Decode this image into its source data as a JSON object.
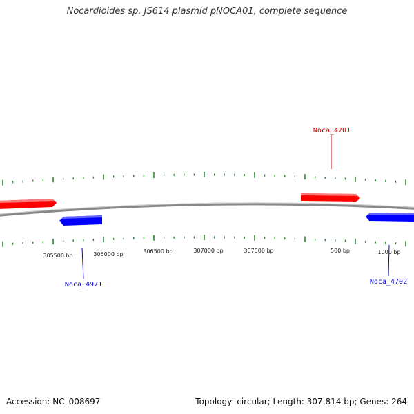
{
  "title": "Nocardioides sp. JS614 plasmid pNOCA01, complete sequence",
  "footer": {
    "accession": "Accession: NC_008697",
    "summary": "Topology: circular; Length: 307,814 bp; Genes: 264"
  },
  "colors": {
    "forward_gene": "#ff0000",
    "reverse_gene": "#0000ff",
    "tick": "#2e8b2e",
    "backbone": "#888888",
    "forward_label": "#cc0000",
    "reverse_label": "#0000cc"
  },
  "bp_labels": [
    "305500 bp",
    "306000 bp",
    "306500 bp",
    "307000 bp",
    "307500 bp",
    "500 bp",
    "1000 bp"
  ],
  "genes": [
    {
      "name": "Noca_4701",
      "strand": "forward"
    },
    {
      "name": "Noca_4971",
      "strand": "reverse"
    },
    {
      "name": "Noca_4702",
      "strand": "reverse"
    }
  ]
}
